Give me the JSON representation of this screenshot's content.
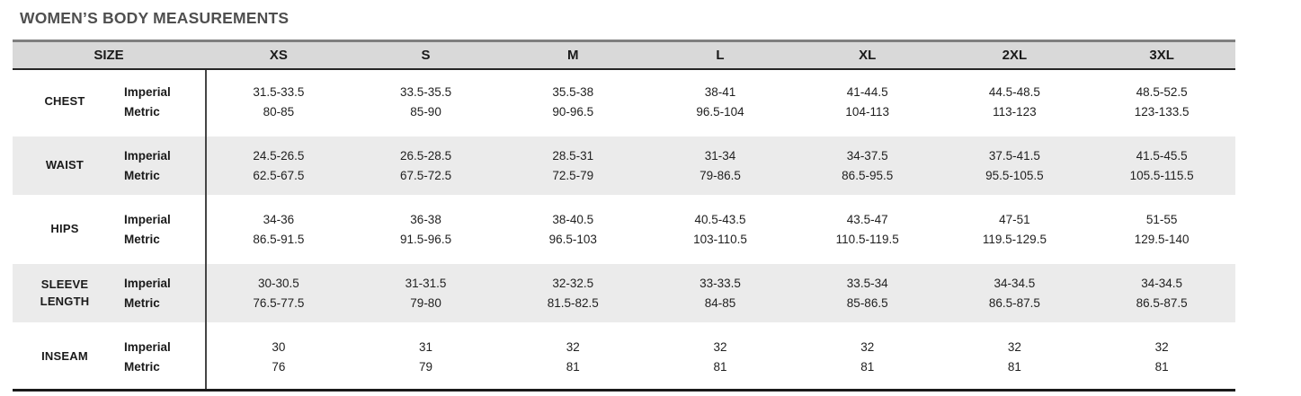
{
  "title": "WOMEN’S BODY MEASUREMENTS",
  "table": {
    "header": {
      "size_label": "SIZE",
      "columns": [
        "XS",
        "S",
        "M",
        "L",
        "XL",
        "2XL",
        "3XL"
      ]
    },
    "unit_labels": {
      "imperial": "Imperial",
      "metric": "Metric"
    },
    "rows": [
      {
        "label": "CHEST",
        "imperial": [
          "31.5-33.5",
          "33.5-35.5",
          "35.5-38",
          "38-41",
          "41-44.5",
          "44.5-48.5",
          "48.5-52.5"
        ],
        "metric": [
          "80-85",
          "85-90",
          "90-96.5",
          "96.5-104",
          "104-113",
          "113-123",
          "123-133.5"
        ]
      },
      {
        "label": "WAIST",
        "imperial": [
          "24.5-26.5",
          "26.5-28.5",
          "28.5-31",
          "31-34",
          "34-37.5",
          "37.5-41.5",
          "41.5-45.5"
        ],
        "metric": [
          "62.5-67.5",
          "67.5-72.5",
          "72.5-79",
          "79-86.5",
          "86.5-95.5",
          "95.5-105.5",
          "105.5-115.5"
        ]
      },
      {
        "label": "HIPS",
        "imperial": [
          "34-36",
          "36-38",
          "38-40.5",
          "40.5-43.5",
          "43.5-47",
          "47-51",
          "51-55"
        ],
        "metric": [
          "86.5-91.5",
          "91.5-96.5",
          "96.5-103",
          "103-110.5",
          "110.5-119.5",
          "119.5-129.5",
          "129.5-140"
        ]
      },
      {
        "label": "SLEEVE LENGTH",
        "imperial": [
          "30-30.5",
          "31-31.5",
          "32-32.5",
          "33-33.5",
          "33.5-34",
          "34-34.5",
          "34-34.5"
        ],
        "metric": [
          "76.5-77.5",
          "79-80",
          "81.5-82.5",
          "84-85",
          "85-86.5",
          "86.5-87.5",
          "86.5-87.5"
        ]
      },
      {
        "label": "INSEAM",
        "imperial": [
          "30",
          "31",
          "32",
          "32",
          "32",
          "32",
          "32"
        ],
        "metric": [
          "76",
          "79",
          "81",
          "81",
          "81",
          "81",
          "81"
        ]
      }
    ]
  },
  "colors": {
    "header_bg": "#d9d9d9",
    "stripe_bg": "#ebebeb",
    "border_dark": "#1a1a1a",
    "title_color": "#4f4f4f"
  }
}
